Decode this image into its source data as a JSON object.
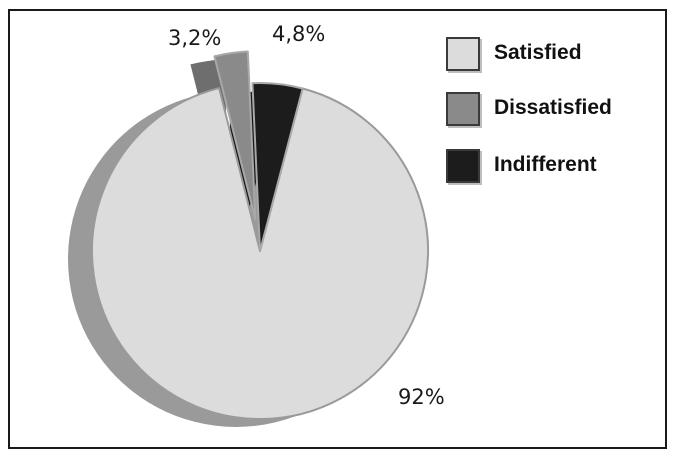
{
  "chart_data": {
    "type": "pie",
    "title": "",
    "slices": [
      {
        "name": "Satisfied",
        "value": 92,
        "label": "92%",
        "color": "#dcdcdc",
        "edge_color": "#9a9a9a",
        "exploded": false
      },
      {
        "name": "Dissatisfied",
        "value": 3.2,
        "label": "3,2%",
        "color": "#8a8a8a",
        "edge_color": "#a8a8a8",
        "exploded": true
      },
      {
        "name": "Indifferent",
        "value": 4.8,
        "label": "4,8%",
        "color": "#1c1c1c",
        "edge_color": "#a8a8a8",
        "exploded": false
      }
    ],
    "legend": {
      "position": "top-right",
      "items": [
        {
          "label": "Satisfied",
          "color": "#dcdcdc"
        },
        {
          "label": "Dissatisfied",
          "color": "#8a8a8a"
        },
        {
          "label": "Indifferent",
          "color": "#1c1c1c"
        }
      ]
    },
    "style": "3d-exploded"
  }
}
